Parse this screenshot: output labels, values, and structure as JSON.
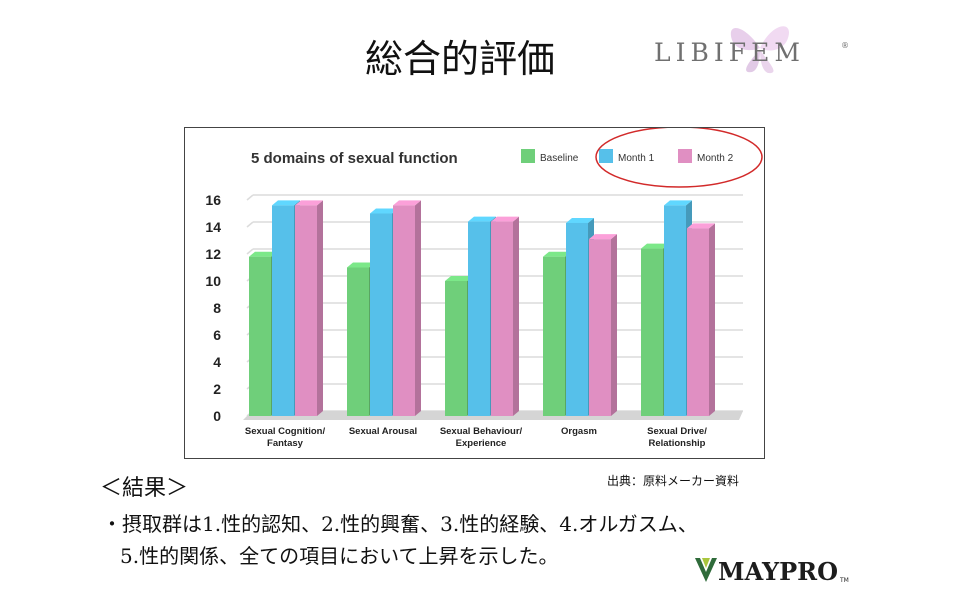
{
  "slide": {
    "title": "総合的評価",
    "source_note": "出典：原料メーカー資料",
    "results_heading": "＜結果＞",
    "results_line1": "・摂取群は1.性的認知、2.性的興奮、3.性的経験、4.オルガスム、",
    "results_line2": "5.性的関係、全ての項目において上昇を示した。",
    "logo_libifem": "LIBIFEM",
    "logo_libifem_mark": "®",
    "logo_maypro": "MAYPRO",
    "logo_maypro_mark": "TM"
  },
  "colors": {
    "baseline": "#6fcf7a",
    "month1": "#56c0ea",
    "month2": "#e08fc2",
    "highlight_ellipse": "#d22a2a",
    "floor": "#d5d5d5"
  },
  "chart_data": {
    "type": "bar",
    "title": "5 domains of sexual function",
    "categories": [
      [
        "Sexual Cognition/",
        "Fantasy"
      ],
      [
        "Sexual Arousal"
      ],
      [
        "Sexual Behaviour/",
        "Experience"
      ],
      [
        "Orgasm"
      ],
      [
        "Sexual Drive/",
        "Relationship"
      ]
    ],
    "series": [
      {
        "name": "Baseline",
        "values": [
          11.8,
          11.0,
          10.0,
          11.8,
          12.4
        ]
      },
      {
        "name": "Month 1",
        "values": [
          15.6,
          15.0,
          14.4,
          14.3,
          15.6
        ]
      },
      {
        "name": "Month 2",
        "values": [
          15.6,
          15.6,
          14.4,
          13.1,
          13.9
        ]
      }
    ],
    "ylim": [
      0,
      16
    ],
    "yticks": [
      0,
      2,
      4,
      6,
      8,
      10,
      12,
      14,
      16
    ],
    "grid": true,
    "legend": "top-right",
    "style": "3d-bars"
  }
}
